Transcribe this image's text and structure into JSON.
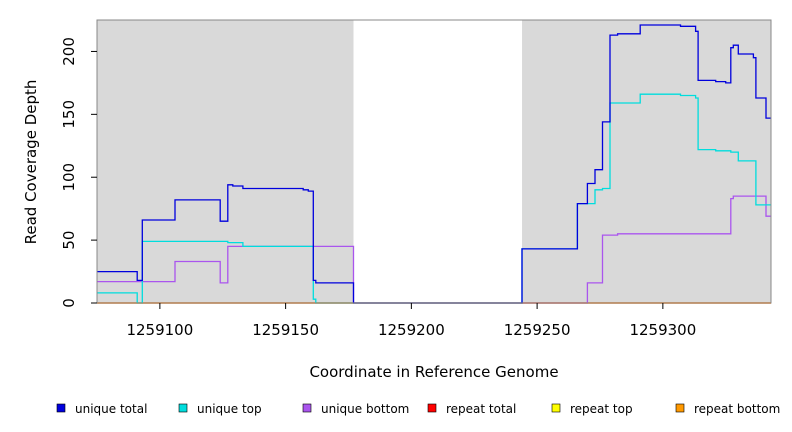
{
  "chart_data": {
    "type": "line",
    "title": "",
    "xlabel": "Coordinate in Reference Genome",
    "ylabel": "Read Coverage Depth",
    "xlim": [
      1259075,
      1259343
    ],
    "ylim": [
      0,
      225
    ],
    "xticks": [
      1259100,
      1259150,
      1259200,
      1259250,
      1259300
    ],
    "yticks": [
      0,
      50,
      100,
      150,
      200
    ],
    "shaded_regions": [
      [
        1259075,
        1259177
      ],
      [
        1259244,
        1259343
      ]
    ],
    "legend_position": "bottom",
    "series": [
      {
        "name": "unique total",
        "color": "#0000dd",
        "x": [
          1259075,
          1259091,
          1259091,
          1259093,
          1259093,
          1259106,
          1259106,
          1259124,
          1259124,
          1259127,
          1259127,
          1259129,
          1259129,
          1259133,
          1259133,
          1259157,
          1259157,
          1259159,
          1259159,
          1259161,
          1259161,
          1259162,
          1259162,
          1259177,
          1259177,
          1259244,
          1259244,
          1259266,
          1259266,
          1259270,
          1259270,
          1259273,
          1259273,
          1259276,
          1259276,
          1259279,
          1259279,
          1259282,
          1259282,
          1259291,
          1259291,
          1259307,
          1259307,
          1259313,
          1259313,
          1259314,
          1259314,
          1259321,
          1259321,
          1259325,
          1259325,
          1259327,
          1259327,
          1259328,
          1259328,
          1259330,
          1259330,
          1259336,
          1259336,
          1259337,
          1259337,
          1259341,
          1259341,
          1259343
        ],
        "y": [
          25,
          25,
          18,
          18,
          66,
          66,
          82,
          82,
          65,
          65,
          94,
          94,
          93,
          93,
          91,
          91,
          90,
          90,
          89,
          89,
          18,
          18,
          16,
          16,
          0,
          0,
          43,
          43,
          79,
          79,
          95,
          95,
          106,
          106,
          144,
          144,
          213,
          213,
          214,
          214,
          221,
          221,
          220,
          220,
          216,
          216,
          177,
          177,
          176,
          176,
          175,
          175,
          203,
          203,
          205,
          205,
          198,
          198,
          195,
          195,
          163,
          163,
          147,
          147
        ]
      },
      {
        "name": "unique top",
        "color": "#00dddd",
        "x": [
          1259075,
          1259091,
          1259091,
          1259093,
          1259093,
          1259127,
          1259127,
          1259133,
          1259133,
          1259161,
          1259161,
          1259162,
          1259162,
          1259177,
          1259177,
          1259244,
          1259244,
          1259266,
          1259266,
          1259273,
          1259273,
          1259276,
          1259276,
          1259279,
          1259279,
          1259291,
          1259291,
          1259307,
          1259307,
          1259313,
          1259313,
          1259314,
          1259314,
          1259321,
          1259321,
          1259327,
          1259327,
          1259330,
          1259330,
          1259337,
          1259337,
          1259343
        ],
        "y": [
          8,
          8,
          0,
          0,
          49,
          49,
          48,
          48,
          45,
          45,
          3,
          3,
          0,
          0,
          0,
          0,
          43,
          43,
          79,
          79,
          90,
          90,
          91,
          91,
          159,
          159,
          166,
          166,
          165,
          165,
          163,
          163,
          122,
          122,
          121,
          121,
          120,
          120,
          113,
          113,
          78,
          78
        ]
      },
      {
        "name": "unique bottom",
        "color": "#aa55ee",
        "x": [
          1259075,
          1259106,
          1259106,
          1259124,
          1259124,
          1259127,
          1259127,
          1259177,
          1259177,
          1259270,
          1259270,
          1259276,
          1259276,
          1259282,
          1259282,
          1259327,
          1259327,
          1259328,
          1259328,
          1259341,
          1259341,
          1259343
        ],
        "y": [
          17,
          17,
          33,
          33,
          16,
          16,
          45,
          45,
          0,
          0,
          16,
          16,
          54,
          54,
          55,
          55,
          83,
          83,
          85,
          85,
          69,
          69
        ]
      },
      {
        "name": "repeat total",
        "color": "#ff0000",
        "x": [
          1259075,
          1259343
        ],
        "y": [
          0,
          0
        ]
      },
      {
        "name": "repeat top",
        "color": "#ffff00",
        "x": [
          1259075,
          1259343
        ],
        "y": [
          0,
          0
        ]
      },
      {
        "name": "repeat bottom",
        "color": "#ff9900",
        "x": [
          1259075,
          1259343
        ],
        "y": [
          0,
          0
        ]
      }
    ]
  }
}
